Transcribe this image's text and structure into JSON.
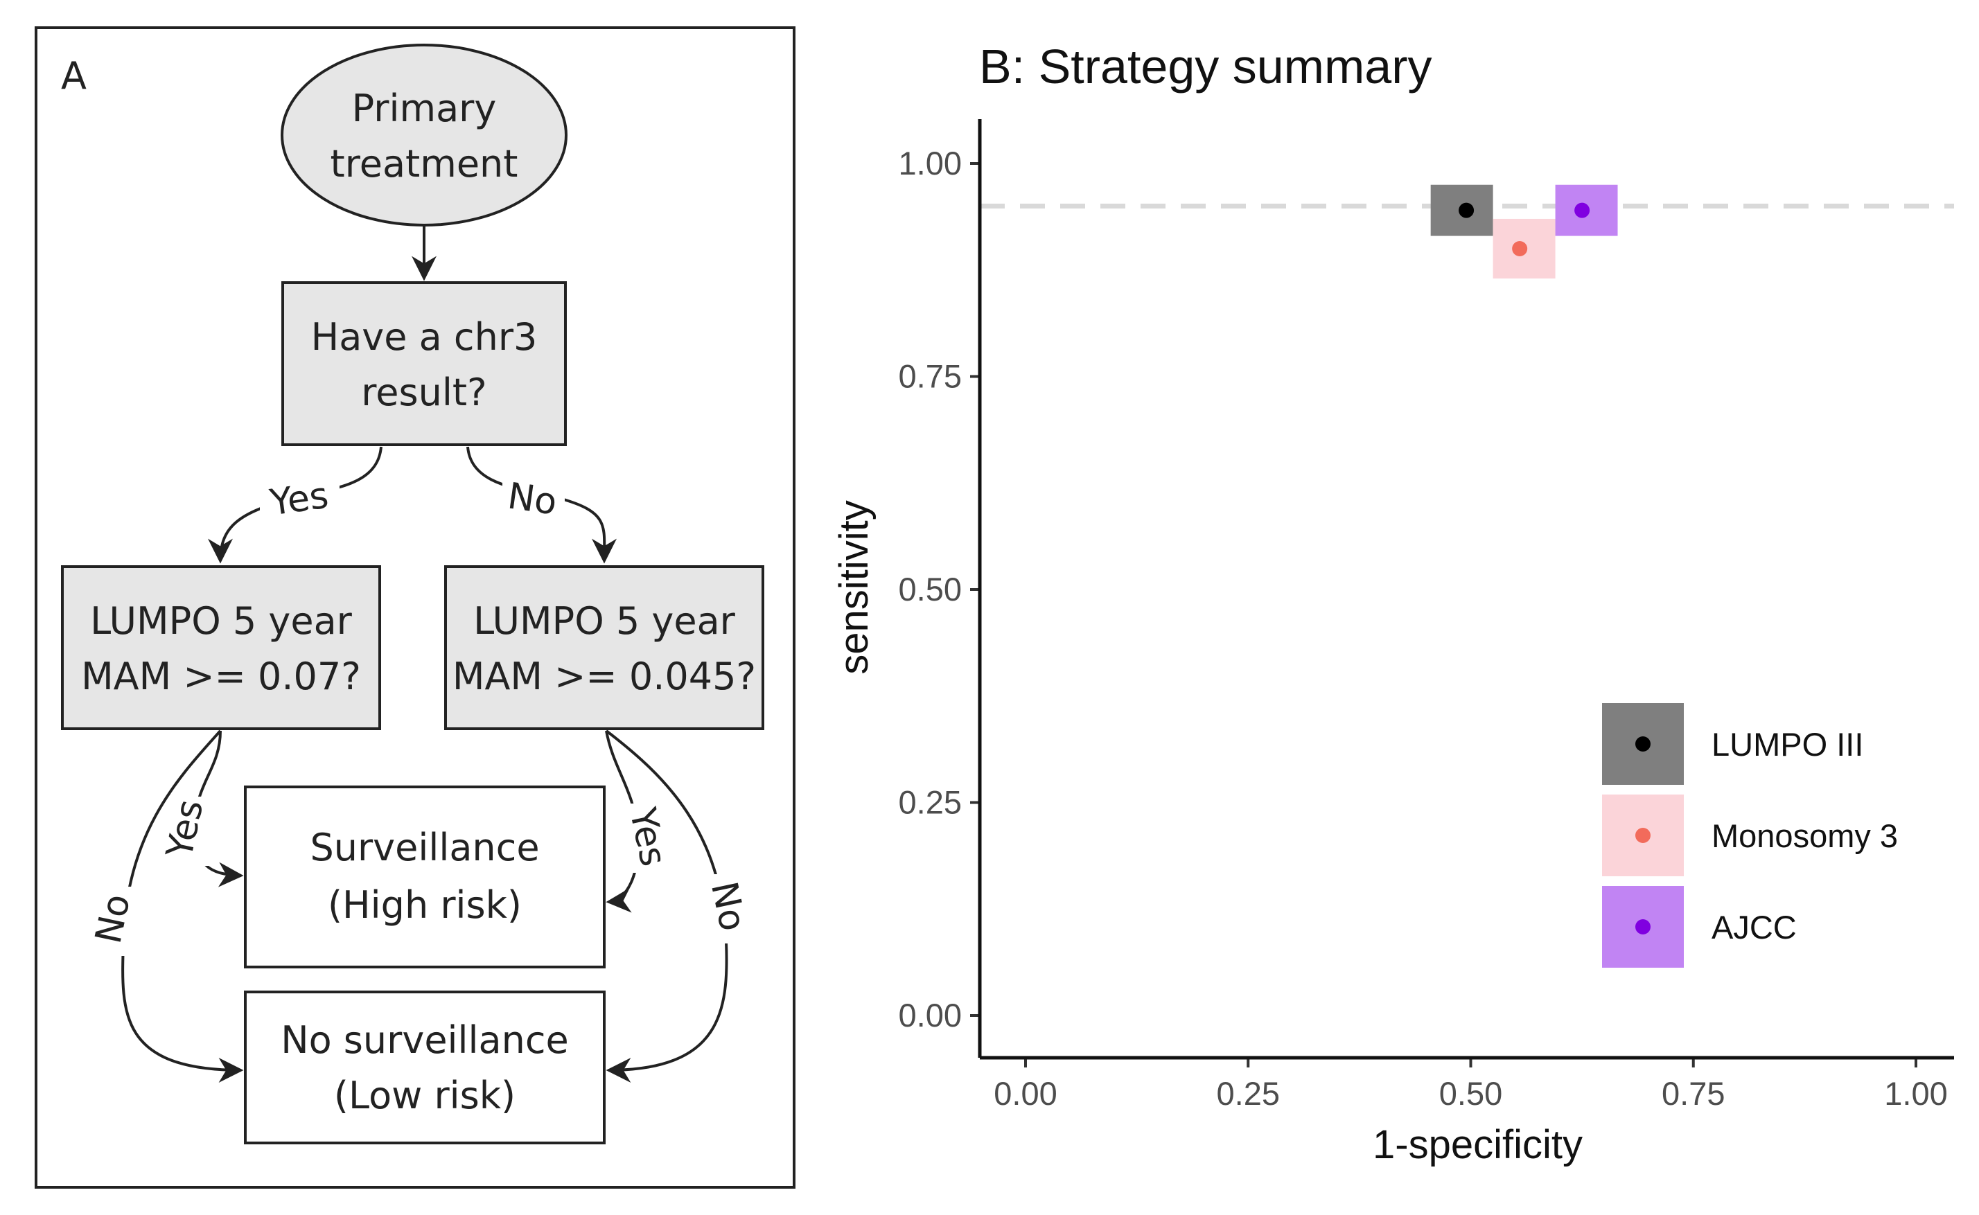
{
  "flowchart": {
    "panel_label": "A",
    "start": {
      "line1": "Primary",
      "line2": "treatment"
    },
    "decision": {
      "line1": "Have a chr3",
      "line2": "result?"
    },
    "yes_label": "Yes",
    "no_label": "No",
    "left_check": {
      "line1": "LUMPO 5 year",
      "line2": "MAM >= 0.07?"
    },
    "right_check": {
      "line1": "LUMPO 5 year",
      "line2": "MAM >= 0.045?"
    },
    "outcome_high": {
      "line1": "Surveillance",
      "line2": "(High risk)"
    },
    "outcome_low": {
      "line1": "No surveillance",
      "line2": "(Low risk)"
    },
    "left_yes": "Yes",
    "left_no": "No",
    "right_yes": "Yes",
    "right_no": "No"
  },
  "chart_data": {
    "type": "scatter",
    "title": "B: Strategy summary",
    "xlabel": "1-specificity",
    "ylabel": "sensitivity",
    "xlim": [
      0,
      1
    ],
    "ylim": [
      0,
      1
    ],
    "x_ticks": [
      0,
      0.25,
      0.5,
      0.75,
      1
    ],
    "y_ticks": [
      0,
      0.25,
      0.5,
      0.75,
      1
    ],
    "x_tick_labels": [
      "0.00",
      "0.25",
      "0.50",
      "0.75",
      "1.00"
    ],
    "y_tick_labels": [
      "0.00",
      "0.25",
      "0.50",
      "0.75",
      "1.00"
    ],
    "reference_line": {
      "y": 0.95,
      "style": "dashed",
      "color": "#d9d9d9"
    },
    "legend_position": "bottom-right",
    "series": [
      {
        "name": "LUMPO III",
        "x": 0.495,
        "y": 0.945,
        "x_range": [
          0.455,
          0.525
        ],
        "y_range": [
          0.915,
          0.975
        ],
        "point_color": "#000000",
        "box_color": "#7f7f7f"
      },
      {
        "name": "Monosomy 3",
        "x": 0.555,
        "y": 0.9,
        "x_range": [
          0.525,
          0.595
        ],
        "y_range": [
          0.865,
          0.935
        ],
        "point_color": "#f26b5b",
        "box_color": "#fbd4d9"
      },
      {
        "name": "AJCC",
        "x": 0.625,
        "y": 0.945,
        "x_range": [
          0.595,
          0.665
        ],
        "y_range": [
          0.915,
          0.975
        ],
        "point_color": "#8000e0",
        "box_color": "#c184f3"
      }
    ]
  }
}
